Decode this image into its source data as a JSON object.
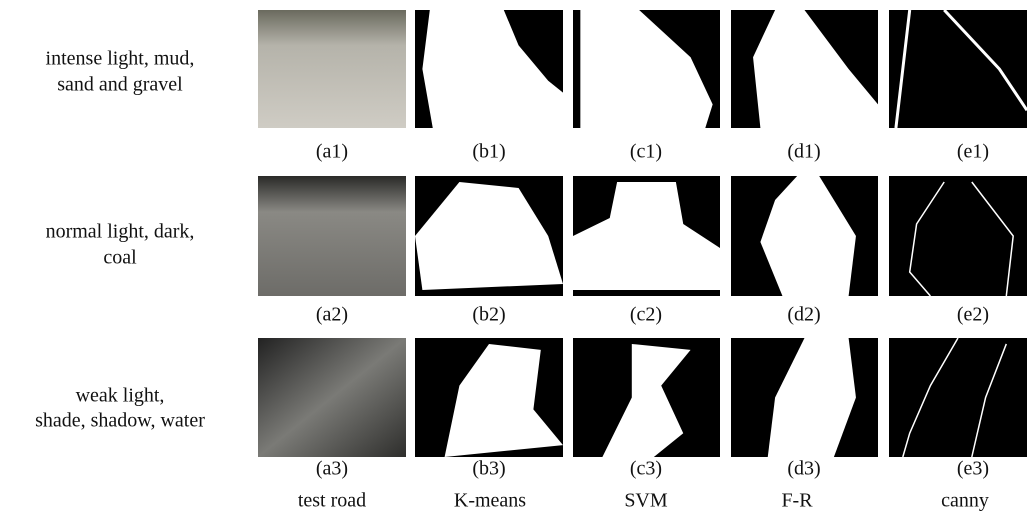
{
  "rows": [
    {
      "label_lines": [
        "intense light, mud,",
        "sand and gravel"
      ],
      "captions": [
        "(a1)",
        "(b1)",
        "(c1)",
        "(d1)",
        "(e1)"
      ]
    },
    {
      "label_lines": [
        "normal light, dark,",
        "coal"
      ],
      "captions": [
        "(a2)",
        "(b2)",
        "(c2)",
        "(d2)",
        "(e2)"
      ]
    },
    {
      "label_lines": [
        "weak light,",
        "shade, shadow, water"
      ],
      "captions": [
        "(a3)",
        "(b3)",
        "(c3)",
        "(d3)",
        "(e3)"
      ]
    }
  ],
  "columns": [
    "test road",
    "K-means",
    "SVM",
    "F-R",
    "canny"
  ]
}
